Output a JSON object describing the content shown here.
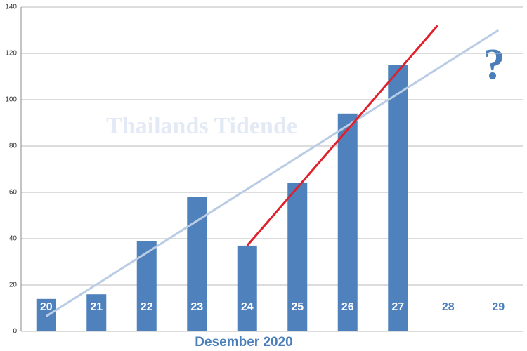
{
  "chart_data": {
    "type": "bar",
    "categories": [
      "20",
      "21",
      "22",
      "23",
      "24",
      "25",
      "26",
      "27",
      "28",
      "29"
    ],
    "values": [
      14,
      16,
      39,
      58,
      37,
      64,
      94,
      115,
      null,
      null
    ],
    "color": "#4f81bd",
    "x_label": "Desember 2020",
    "watermark": "Thailands Tidende",
    "annotation": "?",
    "ylim": [
      0,
      140
    ],
    "yticks": [
      0,
      20,
      40,
      60,
      80,
      100,
      120,
      140
    ],
    "grid": true,
    "lines": [
      {
        "color": "#b9cce4",
        "from": "20",
        "to": "29",
        "start": 6.5,
        "end": 130
      },
      {
        "color": "#e0202a",
        "from": "24",
        "to": "28",
        "start": 37,
        "end": 132
      }
    ]
  }
}
